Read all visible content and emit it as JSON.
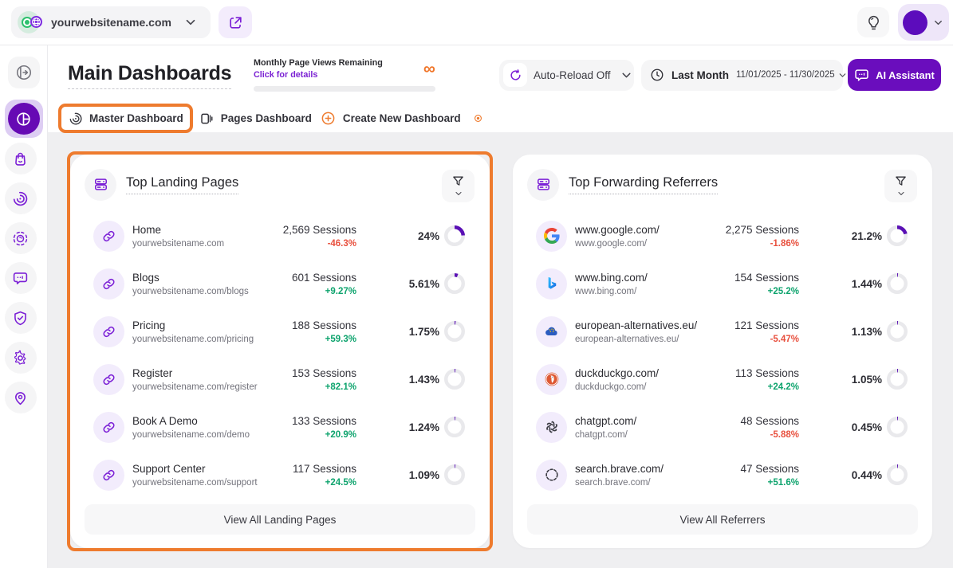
{
  "topbar": {
    "site_name": "yourwebsitename.com",
    "icons": {
      "open_in_new": "external-link",
      "idea": "lightbulb",
      "account": "avatar"
    }
  },
  "sidebar": {
    "collapse_icon": "collapse-arrow",
    "items": [
      {
        "name": "dashboards",
        "icon": "dashboard-pie",
        "active": true
      },
      {
        "name": "ecommerce",
        "icon": "shopping-bag",
        "active": false
      },
      {
        "name": "web-analytics",
        "icon": "spiral",
        "active": false
      },
      {
        "name": "behavior",
        "icon": "scan-focus",
        "active": false
      },
      {
        "name": "communication",
        "icon": "chat-bubble",
        "active": false
      },
      {
        "name": "privacy",
        "icon": "shield-check",
        "active": false
      },
      {
        "name": "settings",
        "icon": "gear",
        "active": false
      },
      {
        "name": "visitors",
        "icon": "location-pin",
        "active": false
      }
    ]
  },
  "header": {
    "title": "Main Dashboards",
    "pageviews": {
      "label": "Monthly Page Views Remaining",
      "link": "Click for details",
      "remaining": "∞"
    },
    "controls": {
      "auto_reload": "Auto-Reload Off",
      "period_label": "Last Month",
      "period_range": "11/01/2025 - 11/30/2025",
      "ai_assistant": "AI Assistant"
    }
  },
  "tabs": [
    {
      "label": "Master Dashboard",
      "icon": "spiral",
      "active": true
    },
    {
      "label": "Pages Dashboard",
      "icon": "pages",
      "active": false
    },
    {
      "label": "Create New Dashboard",
      "icon": "plus-circle",
      "active": false,
      "trailing_icon": "target-dot"
    }
  ],
  "cards": [
    {
      "title": "Top Landing Pages",
      "header_icon": "server",
      "filter_icon": "funnel",
      "view_all": "View All Landing Pages",
      "highlighted": true,
      "rows": [
        {
          "icon": "link",
          "title": "Home",
          "subtitle": "yourwebsitename.com",
          "sessions": "2,569 Sessions",
          "change": "-46.3%",
          "trend": "down",
          "percent": "24%",
          "percent_value": 24
        },
        {
          "icon": "link",
          "title": "Blogs",
          "subtitle": "yourwebsitename.com/blogs",
          "sessions": "601 Sessions",
          "change": "+9.27%",
          "trend": "up",
          "percent": "5.61%",
          "percent_value": 5.61
        },
        {
          "icon": "link",
          "title": "Pricing",
          "subtitle": "yourwebsitename.com/pricing",
          "sessions": "188 Sessions",
          "change": "+59.3%",
          "trend": "up",
          "percent": "1.75%",
          "percent_value": 1.75
        },
        {
          "icon": "link",
          "title": "Register",
          "subtitle": "yourwebsitename.com/register",
          "sessions": "153 Sessions",
          "change": "+82.1%",
          "trend": "up",
          "percent": "1.43%",
          "percent_value": 1.43
        },
        {
          "icon": "link",
          "title": "Book A Demo",
          "subtitle": "yourwebsitename.com/demo",
          "sessions": "133 Sessions",
          "change": "+20.9%",
          "trend": "up",
          "percent": "1.24%",
          "percent_value": 1.24
        },
        {
          "icon": "link",
          "title": "Support Center",
          "subtitle": "yourwebsitename.com/support",
          "sessions": "117 Sessions",
          "change": "+24.5%",
          "trend": "up",
          "percent": "1.09%",
          "percent_value": 1.09
        }
      ]
    },
    {
      "title": "Top Forwarding Referrers",
      "header_icon": "server",
      "filter_icon": "funnel",
      "view_all": "View All Referrers",
      "highlighted": false,
      "rows": [
        {
          "icon": "google",
          "title": "www.google.com/",
          "subtitle": "www.google.com/",
          "sessions": "2,275 Sessions",
          "change": "-1.86%",
          "trend": "down",
          "percent": "21.2%",
          "percent_value": 21.2
        },
        {
          "icon": "bing",
          "title": "www.bing.com/",
          "subtitle": "www.bing.com/",
          "sessions": "154 Sessions",
          "change": "+25.2%",
          "trend": "up",
          "percent": "1.44%",
          "percent_value": 1.44
        },
        {
          "icon": "eu",
          "title": "european-alternatives.eu/",
          "subtitle": "european-alternatives.eu/",
          "sessions": "121 Sessions",
          "change": "-5.47%",
          "trend": "down",
          "percent": "1.13%",
          "percent_value": 1.13
        },
        {
          "icon": "duck",
          "title": "duckduckgo.com/",
          "subtitle": "duckduckgo.com/",
          "sessions": "113 Sessions",
          "change": "+24.2%",
          "trend": "up",
          "percent": "1.05%",
          "percent_value": 1.05
        },
        {
          "icon": "chatgpt",
          "title": "chatgpt.com/",
          "subtitle": "chatgpt.com/",
          "sessions": "48 Sessions",
          "change": "-5.88%",
          "trend": "down",
          "percent": "0.45%",
          "percent_value": 0.45
        },
        {
          "icon": "brave",
          "title": "search.brave.com/",
          "subtitle": "search.brave.com/",
          "sessions": "47 Sessions",
          "change": "+51.6%",
          "trend": "up",
          "percent": "0.44%",
          "percent_value": 0.44
        }
      ]
    }
  ],
  "colors": {
    "accent_purple": "#6a0dbd",
    "accent_orange": "#ee7b2e",
    "donut_purple": "#5a10b5",
    "positive_green": "#0da36d",
    "negative_red": "#e8503e",
    "page_bg": "#efeff1"
  }
}
